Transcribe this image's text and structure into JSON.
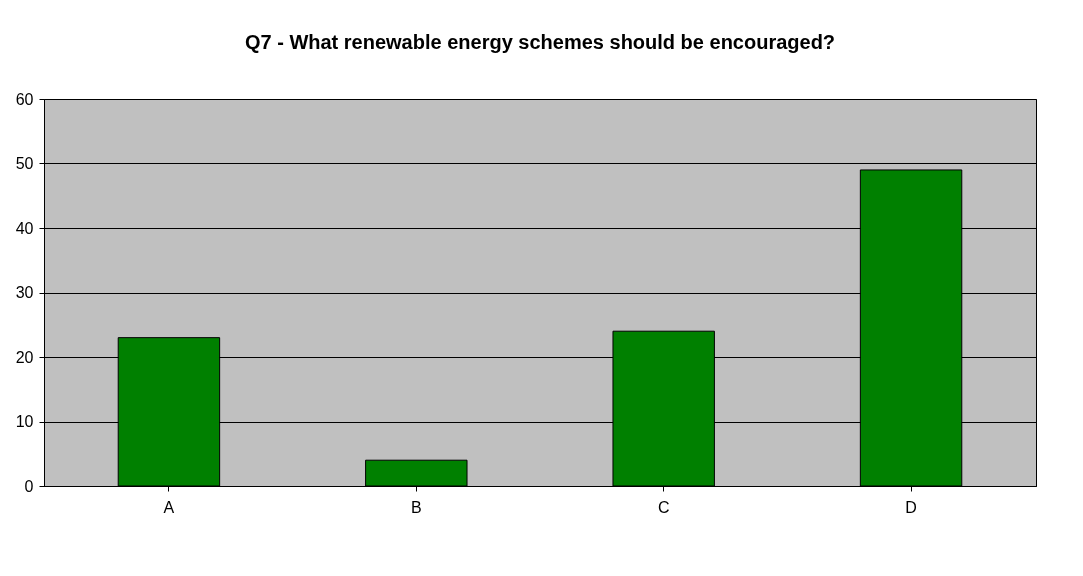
{
  "chart_data": {
    "type": "bar",
    "title": "Q7 - What renewable energy schemes should be encouraged?",
    "categories": [
      "A",
      "B",
      "C",
      "D"
    ],
    "values": [
      23,
      4,
      24,
      49
    ],
    "color": "#008000",
    "ylim": [
      0,
      60
    ],
    "yticks": [
      0,
      10,
      20,
      30,
      40,
      50,
      60
    ],
    "grid": "y"
  }
}
